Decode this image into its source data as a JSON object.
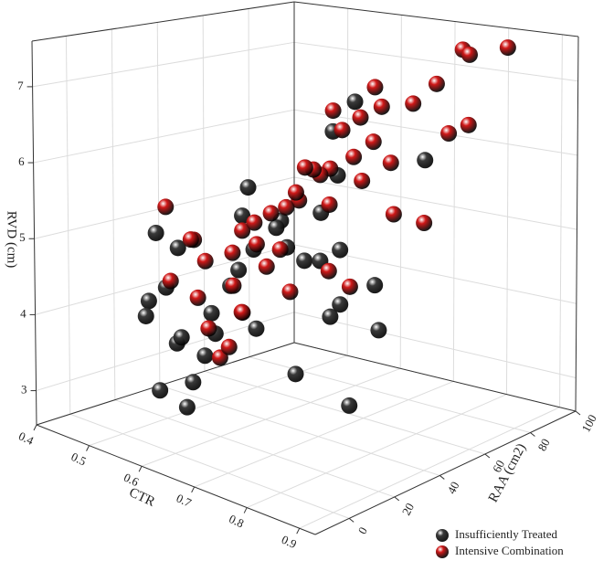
{
  "chart_data": {
    "type": "scatter3d",
    "xlabel": "CTR",
    "ylabel": "RAA (cm2)",
    "zlabel": "RVD (cm)",
    "xlim": [
      0.4,
      0.93
    ],
    "ylim": [
      -15,
      100
    ],
    "zlim": [
      2.55,
      7.6
    ],
    "xticks": [
      0.4,
      0.5,
      0.6,
      0.7,
      0.8,
      0.9
    ],
    "yticks": [
      0,
      20,
      40,
      60,
      80,
      100
    ],
    "zticks": [
      3,
      4,
      5,
      6,
      7
    ],
    "grid": true,
    "legend": "lower right",
    "series": [
      {
        "name": "Insufficiently Treated",
        "color": "#3a3a3a",
        "x": [
          0.55,
          0.6,
          0.58,
          0.62,
          0.5,
          0.52,
          0.57,
          0.66,
          0.7,
          0.6,
          0.63,
          0.55,
          0.58,
          0.72,
          0.68,
          0.65,
          0.52,
          0.6,
          0.75,
          0.62,
          0.48,
          0.56,
          0.64,
          0.7,
          0.58,
          0.6,
          0.5,
          0.66,
          0.78,
          0.54,
          0.6,
          0.69,
          0.62,
          0.57,
          0.61,
          0.73
        ],
        "y": [
          5,
          8,
          10,
          20,
          12,
          15,
          25,
          22,
          30,
          35,
          40,
          28,
          18,
          45,
          50,
          38,
          6,
          30,
          55,
          60,
          20,
          42,
          48,
          65,
          33,
          70,
          25,
          58,
          35,
          15,
          45,
          52,
          75,
          10,
          62,
          80
        ],
        "z": [
          3.2,
          3.4,
          3.0,
          4.6,
          4.2,
          4.4,
          3.8,
          4.1,
          3.5,
          4.9,
          5.3,
          4.0,
          3.6,
          4.3,
          4.0,
          5.0,
          4.1,
          5.4,
          3.9,
          5.2,
          5.0,
          5.6,
          4.7,
          4.3,
          4.6,
          6.2,
          4.8,
          5.8,
          3.2,
          3.7,
          5.1,
          4.9,
          6.6,
          3.9,
          4.5,
          5.9
        ]
      },
      {
        "name": "Intensive Combination",
        "color": "#d01818",
        "x": [
          0.6,
          0.62,
          0.65,
          0.58,
          0.7,
          0.55,
          0.68,
          0.72,
          0.6,
          0.64,
          0.66,
          0.57,
          0.75,
          0.62,
          0.7,
          0.59,
          0.63,
          0.67,
          0.8,
          0.61,
          0.56,
          0.69,
          0.73,
          0.65,
          0.6,
          0.71,
          0.58,
          0.66,
          0.62,
          0.77,
          0.64,
          0.68,
          0.6,
          0.74,
          0.55,
          0.63,
          0.7,
          0.82,
          0.66,
          0.61,
          0.59,
          0.72,
          0.65,
          0.68,
          0.6,
          0.76,
          0.64,
          0.7
        ],
        "y": [
          20,
          25,
          35,
          15,
          45,
          10,
          50,
          40,
          30,
          55,
          60,
          22,
          70,
          38,
          65,
          28,
          48,
          75,
          80,
          33,
          18,
          58,
          85,
          42,
          26,
          62,
          12,
          68,
          36,
          90,
          52,
          78,
          24,
          88,
          8,
          44,
          72,
          95,
          56,
          34,
          16,
          82,
          46,
          64,
          30,
          92,
          40,
          54
        ],
        "z": [
          3.6,
          4.2,
          5.0,
          4.4,
          5.6,
          4.6,
          6.0,
          4.8,
          5.2,
          5.8,
          6.4,
          3.9,
          6.8,
          5.4,
          7.0,
          4.9,
          5.5,
          6.6,
          7.5,
          5.3,
          5.1,
          6.1,
          6.9,
          5.7,
          4.5,
          6.3,
          5.2,
          6.5,
          4.7,
          7.3,
          5.9,
          5.1,
          3.7,
          6.2,
          5.6,
          4.3,
          5.9,
          7.4,
          6.7,
          5.0,
          4.9,
          5.0,
          6.0,
          5.7,
          4.1,
          6.3,
          5.5,
          4.4
        ]
      }
    ]
  }
}
